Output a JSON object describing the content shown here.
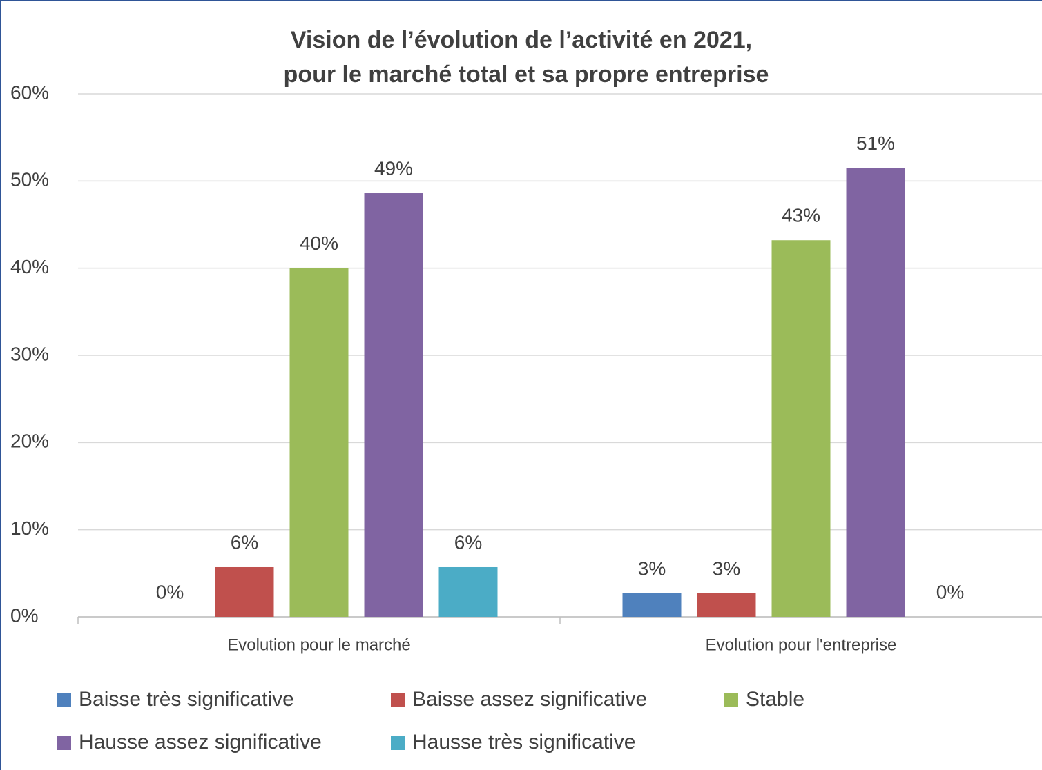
{
  "chart_data": {
    "type": "bar",
    "title": [
      "Vision de l’évolution de l’activité en 2021,",
      "pour le marché total et sa propre entreprise"
    ],
    "categories": [
      "Evolution pour le marché",
      "Evolution pour l'entreprise"
    ],
    "series": [
      {
        "name": "Baisse très significative",
        "color": "#4f81bd",
        "values": [
          0,
          2.7
        ],
        "value_labels": [
          "0%",
          "3%"
        ]
      },
      {
        "name": "Baisse assez significative",
        "color": "#c0504d",
        "values": [
          5.7,
          2.7
        ],
        "value_labels": [
          "6%",
          "3%"
        ]
      },
      {
        "name": "Stable",
        "color": "#9bbb59",
        "values": [
          40,
          43.2
        ],
        "value_labels": [
          "40%",
          "43%"
        ]
      },
      {
        "name": "Hausse assez significative",
        "color": "#8064a2",
        "values": [
          48.6,
          51.5
        ],
        "value_labels": [
          "49%",
          "51%"
        ]
      },
      {
        "name": "Hausse très significative",
        "color": "#4bacc6",
        "values": [
          5.7,
          0
        ],
        "value_labels": [
          "6%",
          "0%"
        ]
      }
    ],
    "ylim": [
      0,
      60
    ],
    "yticks": [
      {
        "value": 0,
        "label": "0%"
      },
      {
        "value": 10,
        "label": "10%"
      },
      {
        "value": 20,
        "label": "20%"
      },
      {
        "value": 30,
        "label": "30%"
      },
      {
        "value": 40,
        "label": "40%"
      },
      {
        "value": 50,
        "label": "50%"
      },
      {
        "value": 60,
        "label": "60%"
      }
    ],
    "grid": true,
    "legend": "bottom"
  }
}
